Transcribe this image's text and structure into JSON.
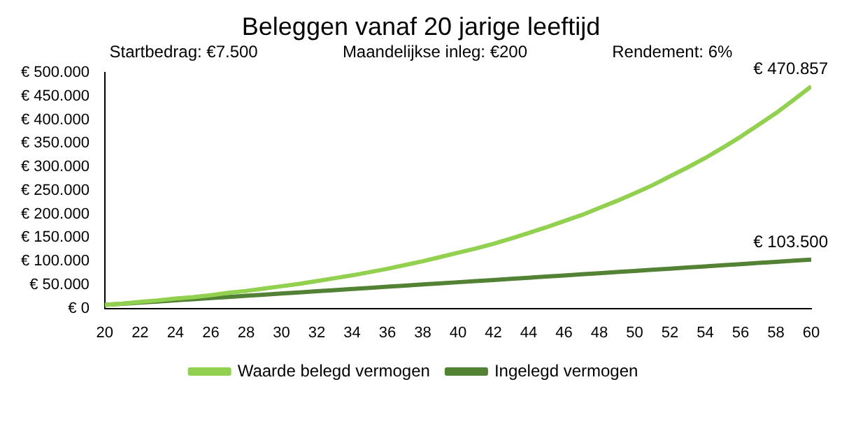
{
  "chart_data": {
    "type": "line",
    "title": "Beleggen vanaf 20 jarige leeftijd",
    "annotations": [
      "Startbedrag: €7.500",
      "Maandelijkse inleg: €200",
      "Rendement:  6%"
    ],
    "x": [
      20,
      21,
      22,
      23,
      24,
      25,
      26,
      27,
      28,
      29,
      30,
      31,
      32,
      33,
      34,
      35,
      36,
      37,
      38,
      39,
      40,
      41,
      42,
      43,
      44,
      45,
      46,
      47,
      48,
      49,
      50,
      51,
      52,
      53,
      54,
      55,
      56,
      57,
      58,
      59,
      60
    ],
    "series": [
      {
        "name": "Waarde belegd vermogen",
        "color": "#92d050",
        "values": [
          7500,
          10000,
          14000,
          17000,
          21000,
          24000,
          28000,
          33000,
          37000,
          42000,
          47000,
          52000,
          58000,
          64000,
          70000,
          77000,
          84000,
          92000,
          100000,
          109000,
          118000,
          127000,
          137000,
          148000,
          160000,
          172000,
          185000,
          198000,
          213000,
          228000,
          244000,
          261000,
          280000,
          299000,
          319000,
          341000,
          364000,
          389000,
          414000,
          442000,
          470857
        ],
        "value_labels": [
          null,
          null,
          null,
          null,
          null,
          null,
          null,
          null,
          null,
          null,
          null,
          null,
          null,
          null,
          null,
          null,
          null,
          null,
          null,
          null,
          null,
          null,
          null,
          null,
          null,
          null,
          null,
          null,
          null,
          null,
          null,
          null,
          null,
          null,
          null,
          null,
          null,
          null,
          null,
          null,
          "€ 470.857"
        ]
      },
      {
        "name": "Ingelegd vermogen",
        "color": "#548235",
        "values": [
          7500,
          9900,
          12300,
          14700,
          17100,
          19500,
          21900,
          24300,
          26700,
          29100,
          31500,
          33900,
          36300,
          38700,
          41100,
          43500,
          45900,
          48300,
          50700,
          53100,
          55500,
          57900,
          60300,
          62700,
          65100,
          67500,
          69900,
          72300,
          74700,
          77100,
          79500,
          81900,
          84300,
          86700,
          89100,
          91500,
          93900,
          96300,
          98700,
          101100,
          103500
        ],
        "value_labels": [
          null,
          null,
          null,
          null,
          null,
          null,
          null,
          null,
          null,
          null,
          null,
          null,
          null,
          null,
          null,
          null,
          null,
          null,
          null,
          null,
          null,
          null,
          null,
          null,
          null,
          null,
          null,
          null,
          null,
          null,
          null,
          null,
          null,
          null,
          null,
          null,
          null,
          null,
          null,
          null,
          "€ 103.500"
        ]
      }
    ],
    "xlim": [
      20,
      60
    ],
    "xticks": [
      20,
      22,
      24,
      26,
      28,
      30,
      32,
      34,
      36,
      38,
      40,
      42,
      44,
      46,
      48,
      50,
      52,
      54,
      56,
      58,
      60
    ],
    "ylim": [
      0,
      500000
    ],
    "yticks": [
      {
        "value": 0,
        "label": "€ 0"
      },
      {
        "value": 50000,
        "label": "€ 50.000"
      },
      {
        "value": 100000,
        "label": "€ 100.000"
      },
      {
        "value": 150000,
        "label": "€ 150.000"
      },
      {
        "value": 200000,
        "label": "€ 200.000"
      },
      {
        "value": 250000,
        "label": "€ 250.000"
      },
      {
        "value": 300000,
        "label": "€ 300.000"
      },
      {
        "value": 350000,
        "label": "€ 350.000"
      },
      {
        "value": 400000,
        "label": "€ 400.000"
      },
      {
        "value": 450000,
        "label": "€ 450.000"
      },
      {
        "value": 500000,
        "label": "€ 500.000"
      }
    ],
    "grid": false,
    "legend": "bottom",
    "marker": "none",
    "line_style": "solid"
  }
}
